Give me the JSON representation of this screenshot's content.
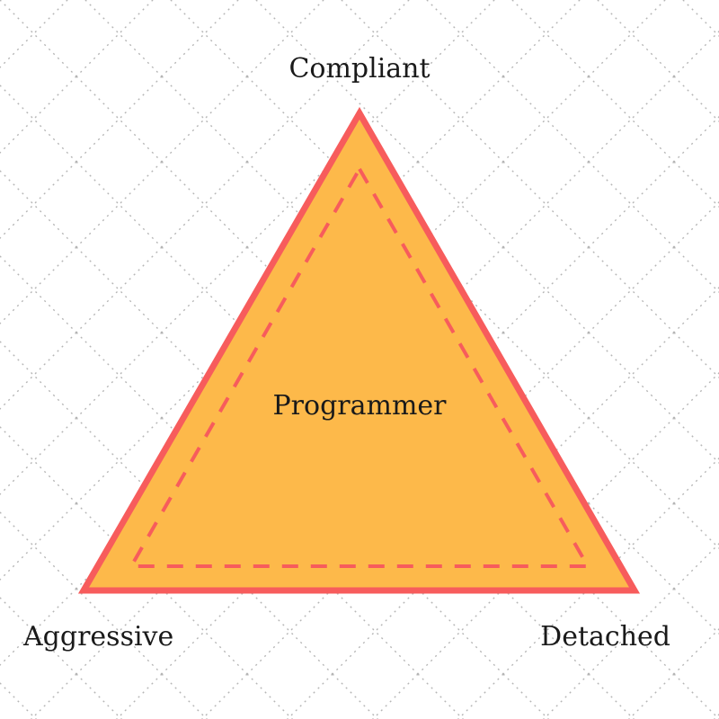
{
  "diagram": {
    "top_label": "Compliant",
    "center_label": "Programmer",
    "left_label": "Aggressive",
    "right_label": "Detached"
  },
  "colors": {
    "triangle_fill": "#FDB94A",
    "triangle_stroke": "#F75C5C",
    "grid_dots": "#b5b5b5",
    "text": "#1a1a1a",
    "background": "#ffffff"
  }
}
